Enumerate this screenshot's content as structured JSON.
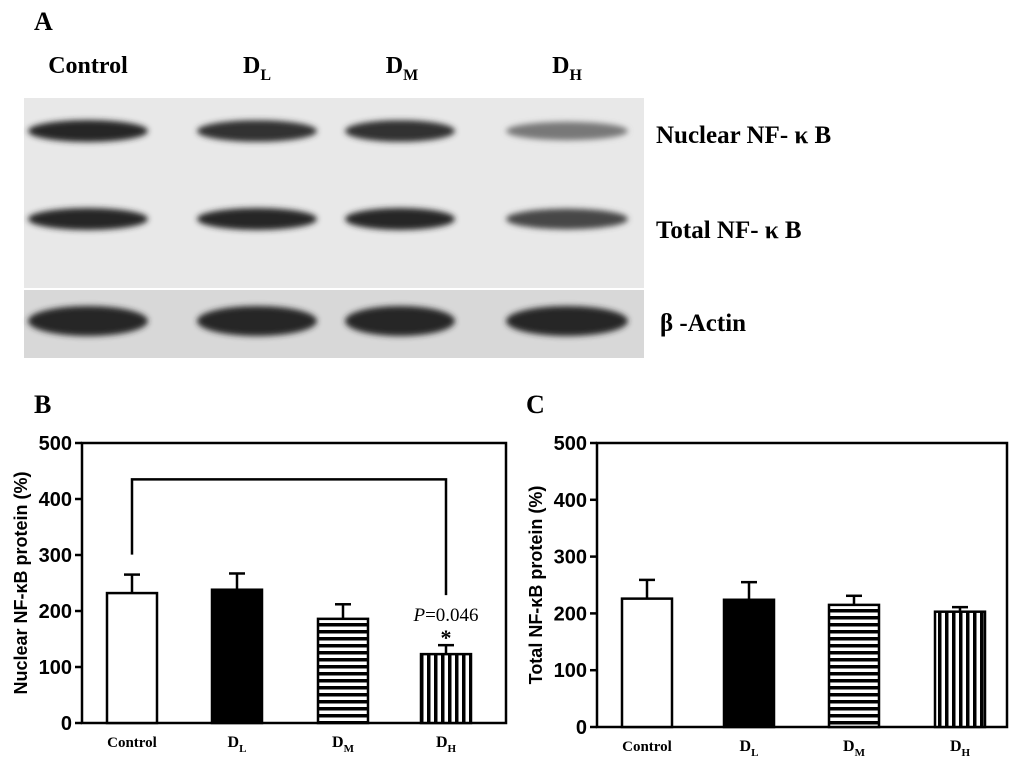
{
  "panel_a": {
    "label": "A",
    "lanes": [
      {
        "main": "Control",
        "sub": ""
      },
      {
        "main": "D",
        "sub": "L"
      },
      {
        "main": "D",
        "sub": "M"
      },
      {
        "main": "D",
        "sub": "H"
      }
    ],
    "blots": [
      {
        "label": "Nuclear NF- κ B",
        "intensity": [
          1.0,
          0.95,
          0.95,
          0.6
        ]
      },
      {
        "label": "Total NF- κ B",
        "intensity": [
          1.0,
          1.0,
          1.0,
          0.85
        ]
      },
      {
        "label": "β -Actin",
        "intensity": [
          1.0,
          1.0,
          1.0,
          1.0
        ]
      }
    ]
  },
  "colors": {
    "black": "#000000",
    "white": "#ffffff",
    "blot_bg": "#e8e8e8",
    "band": "#111111"
  },
  "chart_data": [
    {
      "panel": "B",
      "type": "bar",
      "ylabel": "Nuclear NF-κB protein (%)",
      "ylim": [
        0,
        500
      ],
      "yticks": [
        0,
        100,
        200,
        300,
        400,
        500
      ],
      "categories": [
        {
          "main": "Control",
          "sub": ""
        },
        {
          "main": "D",
          "sub": "L"
        },
        {
          "main": "D",
          "sub": "M"
        },
        {
          "main": "D",
          "sub": "H"
        }
      ],
      "values": [
        232,
        238,
        186,
        123
      ],
      "errors": [
        33,
        29,
        26,
        16
      ],
      "fills": [
        "white",
        "black",
        "horizontal-stripes",
        "vertical-stripes"
      ],
      "significance": {
        "from": 0,
        "to": 3,
        "bracket_y": 435,
        "p_label_prefix": "P",
        "p_label_value": "=0.046",
        "star": "*"
      },
      "grid": false
    },
    {
      "panel": "C",
      "type": "bar",
      "ylabel": "Total NF-κB protein (%)",
      "ylim": [
        0,
        500
      ],
      "yticks": [
        0,
        100,
        200,
        300,
        400,
        500
      ],
      "categories": [
        {
          "main": "Control",
          "sub": ""
        },
        {
          "main": "D",
          "sub": "L"
        },
        {
          "main": "D",
          "sub": "M"
        },
        {
          "main": "D",
          "sub": "H"
        }
      ],
      "values": [
        226,
        224,
        215,
        203
      ],
      "errors": [
        33,
        31,
        16,
        8
      ],
      "fills": [
        "white",
        "black",
        "horizontal-stripes",
        "vertical-stripes"
      ],
      "grid": false
    }
  ]
}
